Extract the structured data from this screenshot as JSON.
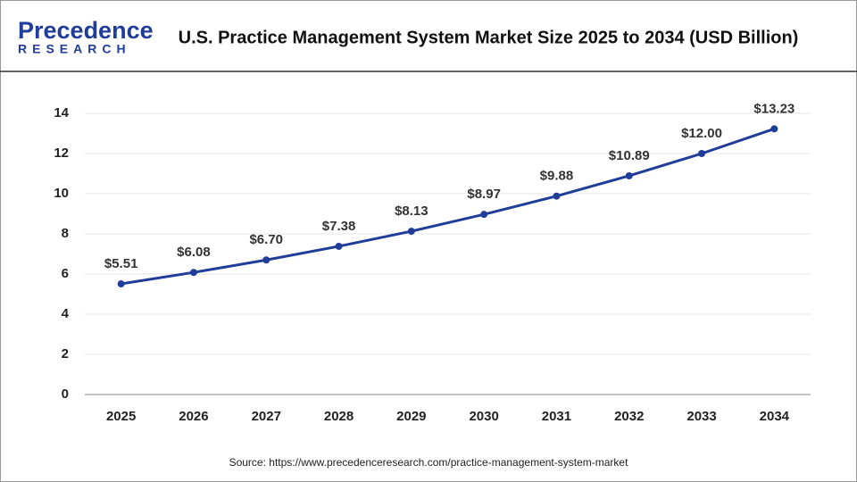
{
  "logo": {
    "name": "Precedence",
    "sub": "RESEARCH"
  },
  "chart_data": {
    "type": "line",
    "title": "U.S. Practice Management System Market Size 2025 to 2034 (USD Billion)",
    "categories": [
      "2025",
      "2026",
      "2027",
      "2028",
      "2029",
      "2030",
      "2031",
      "2032",
      "2033",
      "2034"
    ],
    "values": [
      5.51,
      6.08,
      6.7,
      7.38,
      8.13,
      8.97,
      9.88,
      10.89,
      12.0,
      13.23
    ],
    "value_labels": [
      "$5.51",
      "$6.08",
      "$6.70",
      "$7.38",
      "$8.13",
      "$8.97",
      "$9.88",
      "$10.89",
      "$12.00",
      "$13.23"
    ],
    "color": "#1f3d99",
    "ylim": [
      0,
      14
    ],
    "yticks": [
      0,
      2,
      4,
      6,
      8,
      10,
      12,
      14
    ],
    "grid": true,
    "source": "Source: https://www.precedenceresearch.com/practice-management-system-market"
  }
}
